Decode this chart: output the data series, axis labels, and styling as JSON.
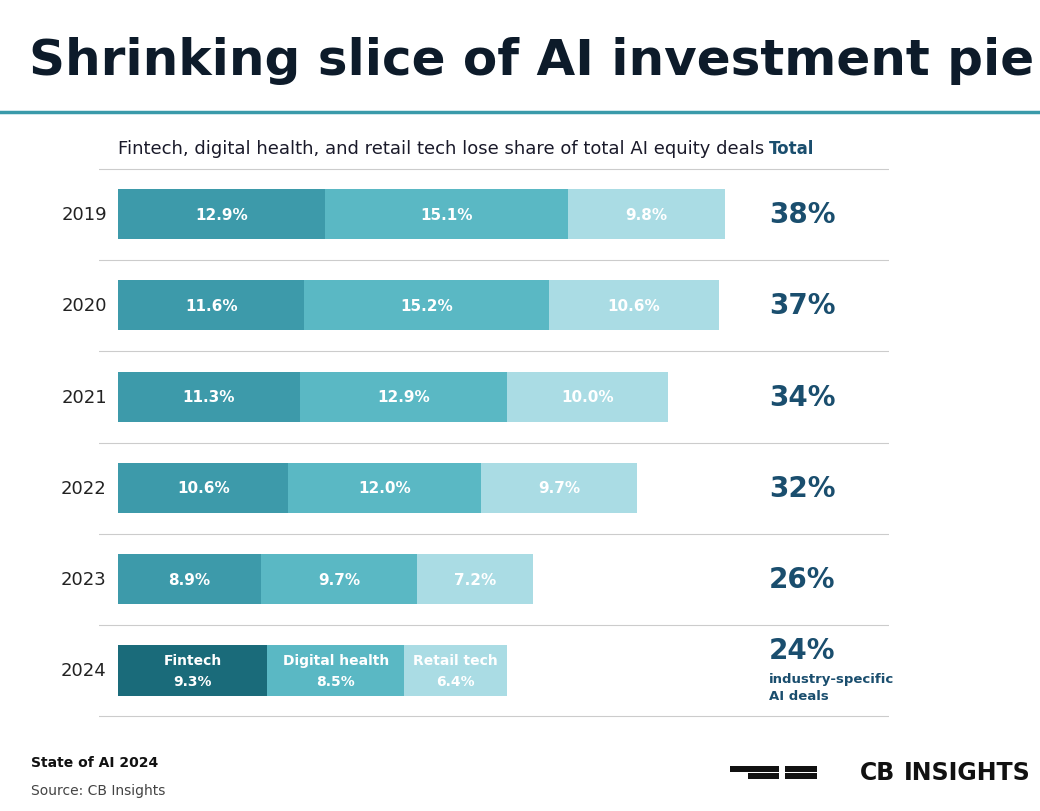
{
  "title": "Shrinking slice of AI investment pie",
  "subtitle": "Fintech, digital health, and retail tech lose share of total AI equity deals",
  "years": [
    "2019",
    "2020",
    "2021",
    "2022",
    "2023",
    "2024"
  ],
  "fintech": [
    12.9,
    11.6,
    11.3,
    10.6,
    8.9,
    9.3
  ],
  "digital_health": [
    15.1,
    15.2,
    12.9,
    12.0,
    9.7,
    8.5
  ],
  "retail_tech": [
    9.8,
    10.6,
    10.0,
    9.7,
    7.2,
    6.4
  ],
  "totals": [
    "38%",
    "37%",
    "34%",
    "32%",
    "26%",
    "24%"
  ],
  "color_fintech": "#3d9aaa",
  "color_digital_health": "#5ab8c4",
  "color_retail_tech": "#aadce4",
  "color_fintech_2024": "#1a6b7a",
  "color_title_bg": "#d8eef5",
  "color_bg": "#ffffff",
  "color_total": "#1a4e6e",
  "color_separator": "#3a9aaa",
  "color_hline": "#cccccc",
  "footer_bold": "State of AI 2024",
  "footer_normal": "Source: CB Insights",
  "total_label": "Total",
  "total_note": "industry-specific\nAI deals",
  "title_fontsize": 36,
  "subtitle_fontsize": 13,
  "bar_label_fontsize": 11,
  "year_fontsize": 13,
  "total_fontsize": 20,
  "bar_height": 0.55
}
